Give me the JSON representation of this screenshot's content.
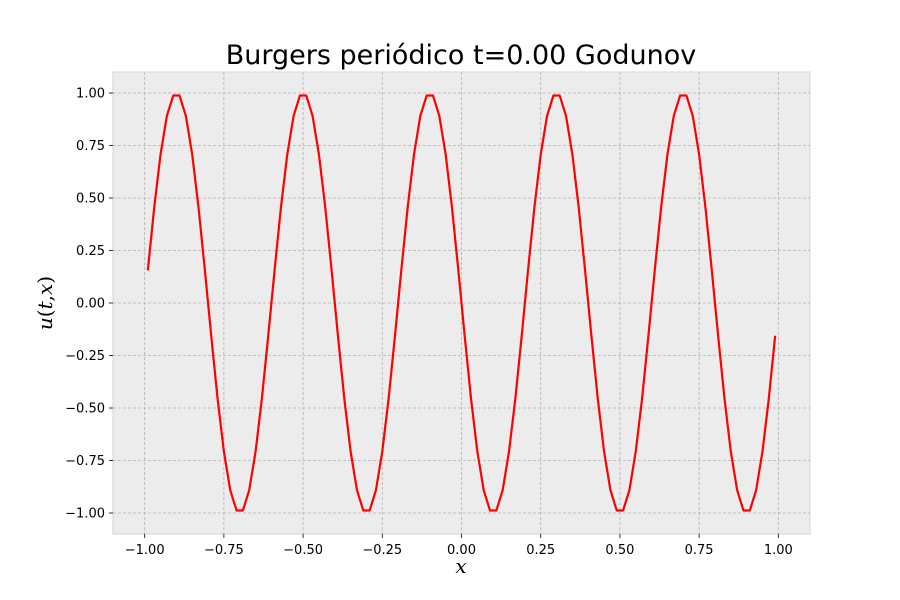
{
  "chart_data": {
    "type": "line",
    "title": "Burgers periódico t=0.00 Godunov",
    "xlabel": "x",
    "ylabel": "u(t,x)",
    "xlim": [
      -1.1,
      1.1
    ],
    "ylim": [
      -1.1,
      1.1
    ],
    "grid": true,
    "x_ticks": [
      -1.0,
      -0.75,
      -0.5,
      -0.25,
      0.0,
      0.25,
      0.5,
      0.75,
      1.0
    ],
    "x_tick_labels": [
      "−1.00",
      "−0.75",
      "−0.50",
      "−0.25",
      "0.00",
      "0.25",
      "0.50",
      "0.75",
      "1.00"
    ],
    "y_ticks": [
      1.0,
      0.75,
      0.5,
      0.25,
      0.0,
      -0.25,
      -0.5,
      -0.75,
      -1.0
    ],
    "y_tick_labels": [
      "1.00",
      "0.75",
      "0.50",
      "0.25",
      "0.00",
      "−0.25",
      "−0.50",
      "−0.75",
      "−1.00"
    ],
    "series": [
      {
        "color": "#ff0000",
        "x": [
          -0.99,
          -0.97,
          -0.95,
          -0.93,
          -0.91,
          -0.89,
          -0.87,
          -0.85,
          -0.83,
          -0.81,
          -0.79,
          -0.77,
          -0.75,
          -0.73,
          -0.71,
          -0.69,
          -0.67,
          -0.65,
          -0.63,
          -0.61,
          -0.59,
          -0.57,
          -0.55,
          -0.53,
          -0.51,
          -0.49,
          -0.47,
          -0.45,
          -0.43,
          -0.41,
          -0.39,
          -0.37,
          -0.35,
          -0.33,
          -0.31,
          -0.29,
          -0.27,
          -0.25,
          -0.23,
          -0.21,
          -0.19,
          -0.17,
          -0.15,
          -0.13,
          -0.11,
          -0.09,
          -0.07,
          -0.05,
          -0.03,
          -0.01,
          0.01,
          0.03,
          0.05,
          0.07,
          0.09,
          0.11,
          0.13,
          0.15,
          0.17,
          0.19,
          0.21,
          0.23,
          0.25,
          0.27,
          0.29,
          0.31,
          0.33,
          0.35,
          0.37,
          0.39,
          0.41,
          0.43,
          0.45,
          0.47,
          0.49,
          0.51,
          0.53,
          0.55,
          0.57,
          0.59,
          0.61,
          0.63,
          0.65,
          0.67,
          0.69,
          0.71,
          0.73,
          0.75,
          0.77,
          0.79,
          0.81,
          0.83,
          0.85,
          0.87,
          0.89,
          0.91,
          0.93,
          0.95,
          0.97,
          0.99
        ],
        "y": [
          0.156,
          0.454,
          0.707,
          0.891,
          0.988,
          0.988,
          0.891,
          0.707,
          0.454,
          0.156,
          -0.156,
          -0.454,
          -0.707,
          -0.891,
          -0.988,
          -0.988,
          -0.891,
          -0.707,
          -0.454,
          -0.156,
          0.156,
          0.454,
          0.707,
          0.891,
          0.988,
          0.988,
          0.891,
          0.707,
          0.454,
          0.156,
          -0.156,
          -0.454,
          -0.707,
          -0.891,
          -0.988,
          -0.988,
          -0.891,
          -0.707,
          -0.454,
          -0.156,
          0.156,
          0.454,
          0.707,
          0.891,
          0.988,
          0.988,
          0.891,
          0.707,
          0.454,
          0.156,
          -0.156,
          -0.454,
          -0.707,
          -0.891,
          -0.988,
          -0.988,
          -0.891,
          -0.707,
          -0.454,
          -0.156,
          0.156,
          0.454,
          0.707,
          0.891,
          0.988,
          0.988,
          0.891,
          0.707,
          0.454,
          0.156,
          -0.156,
          -0.454,
          -0.707,
          -0.891,
          -0.988,
          -0.988,
          -0.891,
          -0.707,
          -0.454,
          -0.156,
          0.156,
          0.454,
          0.707,
          0.891,
          0.988,
          0.988,
          0.891,
          0.707,
          0.454,
          0.156,
          -0.156,
          -0.454,
          -0.707,
          -0.891,
          -0.988,
          -0.988,
          -0.891,
          -0.707,
          -0.454,
          -0.156
        ]
      }
    ],
    "background_color": "#ececec",
    "grid_color": "#b0b0b0"
  }
}
